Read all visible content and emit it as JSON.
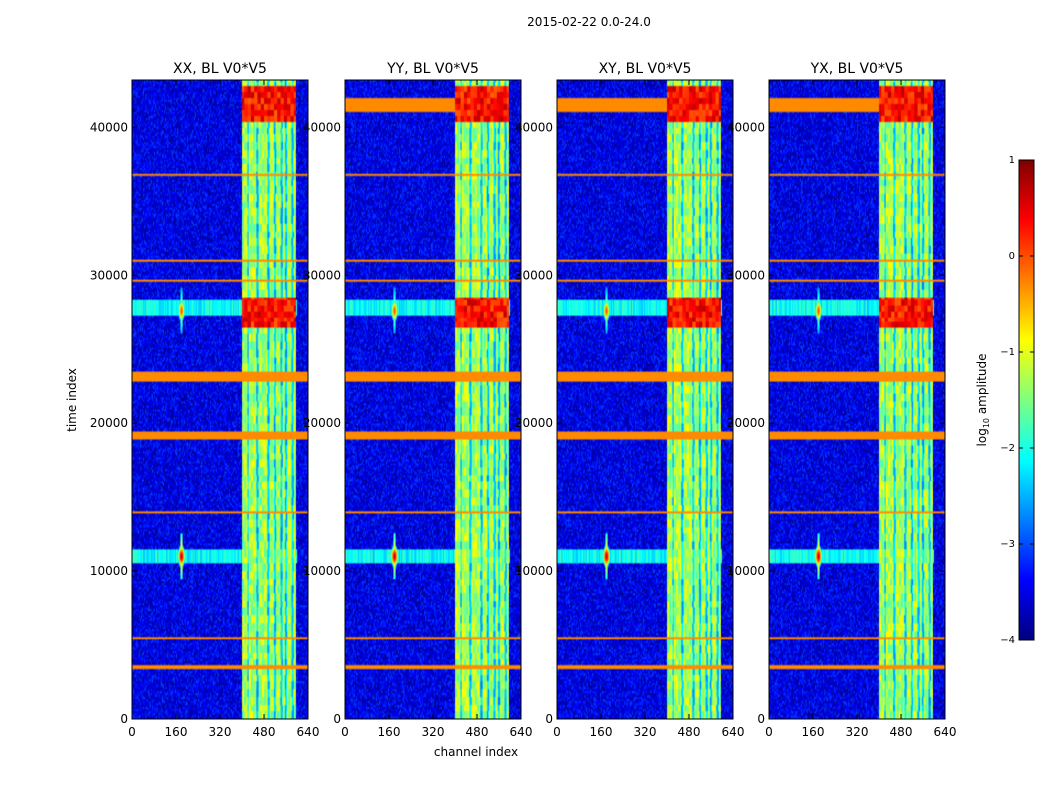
{
  "figure": {
    "suptitle": "2015-02-22 0.0-24.0",
    "xlabel": "channel index",
    "ylabel": "time index"
  },
  "chart_data": {
    "type": "heatmap",
    "panels": [
      {
        "title": "XX, BL V0*V5"
      },
      {
        "title": "YY, BL V0*V5"
      },
      {
        "title": "XY, BL V0*V5"
      },
      {
        "title": "YX, BL V0*V5"
      }
    ],
    "x": {
      "label": "channel index",
      "range": [
        0,
        640
      ],
      "ticks": [
        0,
        160,
        320,
        480,
        640
      ],
      "tick_labels": [
        "0",
        "160",
        "320",
        "480",
        "640"
      ]
    },
    "y": {
      "label": "time index",
      "range": [
        0,
        43200
      ],
      "ticks": [
        0,
        10000,
        20000,
        30000,
        40000
      ],
      "tick_labels": [
        "0",
        "10000",
        "20000",
        "30000",
        "40000"
      ]
    },
    "colorbar": {
      "label_prefix": "log",
      "label_sub": "10",
      "label_suffix": " amplitude",
      "range": [
        -4,
        1
      ],
      "ticks": [
        -4,
        -3,
        -2,
        -1,
        0,
        1
      ],
      "tick_labels": [
        "−4",
        "−3",
        "−2",
        "−1",
        "0",
        "1"
      ],
      "colormap": "jet",
      "colors": [
        "#00007f",
        "#0000ff",
        "#007fff",
        "#00ffff",
        "#7fff7f",
        "#ffff00",
        "#ff7f00",
        "#ff0000",
        "#7f0000"
      ]
    },
    "features": {
      "background_level": -3.5,
      "rfi_channel_band": [
        400,
        595
      ],
      "rfi_channel_columns": [
        422,
        455,
        495,
        520,
        545,
        560,
        585
      ],
      "rfi_band_level": -1.3,
      "strong_rfi_time_ranges": [
        [
          40300,
          42800
        ],
        [
          26500,
          28500
        ]
      ],
      "strong_rfi_level": 0.3,
      "flagged_time_ranges": [
        [
          22800,
          23500
        ],
        [
          18900,
          19400
        ],
        [
          30900,
          31100
        ],
        [
          29500,
          29700
        ],
        [
          36700,
          36900
        ],
        [
          13900,
          14100
        ],
        [
          5400,
          5600
        ],
        [
          3400,
          3600
        ]
      ],
      "flagged_level": -0.3,
      "bright_sources": [
        {
          "channel": 180,
          "time": 11000,
          "level": 0.6
        },
        {
          "channel": 180,
          "time": 27600,
          "level": 0.0
        }
      ]
    }
  }
}
